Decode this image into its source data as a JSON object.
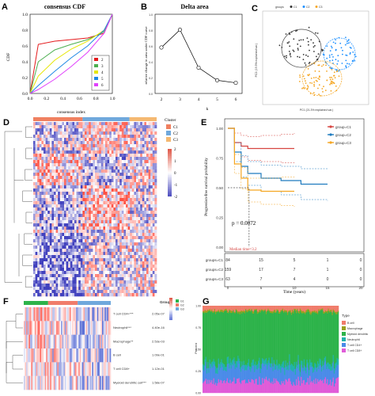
{
  "panels": {
    "A": {
      "label": "A",
      "title": "consensus CDF",
      "xlabel": "consensus index",
      "ylabel": "CDF",
      "xticks": [
        "0.0",
        "0.2",
        "0.4",
        "0.6",
        "0.8",
        "1.0"
      ],
      "yticks": [
        "0.0",
        "0.2",
        "0.4",
        "0.6",
        "0.8",
        "1.0"
      ],
      "legend": [
        {
          "k": "2",
          "color": "#e41a1c"
        },
        {
          "k": "3",
          "color": "#4caf50"
        },
        {
          "k": "4",
          "color": "#e6e600"
        },
        {
          "k": "5",
          "color": "#1e88e5"
        },
        {
          "k": "6",
          "color": "#e040fb"
        }
      ]
    },
    "B": {
      "label": "B",
      "title": "Delta area",
      "xlabel": "k",
      "ylabel": "relative change in area under CDF curve",
      "xticks": [
        "2",
        "3",
        "4",
        "5",
        "6"
      ],
      "yticks": [
        "0.0",
        "0.2",
        "0.4",
        "0.6",
        "0.8",
        "1.0"
      ]
    },
    "C": {
      "label": "C",
      "legend_title": "groups",
      "legend_items": [
        "C1",
        "C2",
        "C3"
      ],
      "xlabel": "PC1 (21.3% explained var.)",
      "ylabel": "PC2 (19.3% explained var.)"
    },
    "D": {
      "label": "D",
      "legend_title": "Cluster",
      "clusters": [
        "C1",
        "C2",
        "C3"
      ],
      "scale": [
        "2",
        "1",
        "0",
        "-1",
        "-2"
      ]
    },
    "E": {
      "label": "E",
      "xlabel": "Time (years)",
      "ylabel": "Progression-free survival probability",
      "yticks": [
        "0.00",
        "0.25",
        "0.50",
        "0.75",
        "1.00"
      ],
      "xticks": [
        "0",
        "5",
        "10",
        "15",
        "20"
      ],
      "pvalue": "p = 0.0072",
      "median": "Median time=3.2",
      "legend": [
        {
          "name": "group=C1",
          "color": "#d64541"
        },
        {
          "name": "group=C2",
          "color": "#1f7bbf"
        },
        {
          "name": "group=C3",
          "color": "#f5a623"
        }
      ],
      "risk_table": [
        {
          "group": "groups=C1",
          "values": [
            "84",
            "15",
            "5",
            "1",
            "0"
          ]
        },
        {
          "group": "groups=C2",
          "values": [
            "159",
            "17",
            "7",
            "1",
            "0"
          ]
        },
        {
          "group": "groups=C3",
          "values": [
            "63",
            "7",
            "4",
            "0",
            "0"
          ]
        }
      ]
    },
    "F": {
      "label": "F",
      "legend_title": "Groups",
      "groups": [
        "G1",
        "G2",
        "G3"
      ],
      "rows": [
        {
          "name": "T cell CD4+***",
          "p": "2.05e-07"
        },
        {
          "name": "Neutrophil***",
          "p": "4.40e-16"
        },
        {
          "name": "Macrophage**",
          "p": "2.53e-03"
        },
        {
          "name": "B cell",
          "p": "1.09e-01"
        },
        {
          "name": "T cell CD8+",
          "p": "1.12e-01"
        },
        {
          "name": "Myeloid dendritic cell***",
          "p": "1.58e-07"
        }
      ]
    },
    "G": {
      "label": "G",
      "ylabel": "Percent",
      "legend_title": "Type",
      "types": [
        {
          "name": "B cell",
          "color": "#f07c6b"
        },
        {
          "name": "Macrophage",
          "color": "#9aa01e"
        },
        {
          "name": "Myeloid dendritic",
          "color": "#2db34a"
        },
        {
          "name": "Neutrophil",
          "color": "#20b2aa"
        },
        {
          "name": "T cell CD4+",
          "color": "#4a8be8"
        },
        {
          "name": "T cell CD8+",
          "color": "#e05bd8"
        }
      ],
      "yticks": [
        "0.00",
        "0.25",
        "0.50",
        "0.75",
        "1.00"
      ]
    }
  },
  "chart_data": [
    {
      "type": "line",
      "title": "consensus CDF",
      "xlabel": "consensus index",
      "ylabel": "CDF",
      "xlim": [
        0,
        1
      ],
      "ylim": [
        0,
        1
      ],
      "series": [
        {
          "name": "2",
          "x": [
            0,
            0.1,
            0.3,
            0.5,
            0.7,
            0.9,
            1.0
          ],
          "values": [
            0,
            0.62,
            0.66,
            0.68,
            0.7,
            0.76,
            1.0
          ]
        },
        {
          "name": "3",
          "x": [
            0,
            0.1,
            0.3,
            0.5,
            0.7,
            0.9,
            1.0
          ],
          "values": [
            0,
            0.4,
            0.55,
            0.62,
            0.68,
            0.78,
            1.0
          ]
        },
        {
          "name": "4",
          "x": [
            0,
            0.1,
            0.3,
            0.5,
            0.7,
            0.9,
            1.0
          ],
          "values": [
            0,
            0.22,
            0.42,
            0.56,
            0.66,
            0.8,
            1.0
          ]
        },
        {
          "name": "5",
          "x": [
            0,
            0.1,
            0.3,
            0.5,
            0.7,
            0.9,
            1.0
          ],
          "values": [
            0,
            0.1,
            0.28,
            0.45,
            0.6,
            0.8,
            1.0
          ]
        },
        {
          "name": "6",
          "x": [
            0,
            0.1,
            0.3,
            0.5,
            0.7,
            0.9,
            1.0
          ],
          "values": [
            0,
            0.05,
            0.18,
            0.34,
            0.52,
            0.76,
            1.0
          ]
        }
      ]
    },
    {
      "type": "line",
      "title": "Delta area",
      "xlabel": "k",
      "ylabel": "relative change in area under CDF curve",
      "categories": [
        "2",
        "3",
        "4",
        "5",
        "6"
      ],
      "values": [
        0.49,
        0.7,
        0.25,
        0.1,
        0.07
      ],
      "ylim": [
        0,
        0.8
      ]
    },
    {
      "type": "line",
      "xlabel": "Time (years)",
      "ylabel": "Progression-free survival probability",
      "xlim": [
        0,
        20
      ],
      "ylim": [
        0,
        1
      ],
      "series": [
        {
          "name": "group=C1",
          "x": [
            0,
            1,
            2,
            3,
            5,
            8,
            10
          ],
          "values": [
            1.0,
            0.88,
            0.85,
            0.83,
            0.83,
            0.83,
            0.83
          ]
        },
        {
          "name": "group=C2",
          "x": [
            0,
            1,
            2,
            3,
            5,
            8,
            11,
            15
          ],
          "values": [
            1.0,
            0.8,
            0.68,
            0.62,
            0.58,
            0.56,
            0.53,
            0.53
          ]
        },
        {
          "name": "group=C3",
          "x": [
            0,
            1,
            2,
            3,
            5,
            8,
            10
          ],
          "values": [
            1.0,
            0.7,
            0.58,
            0.48,
            0.47,
            0.47,
            0.47
          ]
        }
      ]
    }
  ]
}
